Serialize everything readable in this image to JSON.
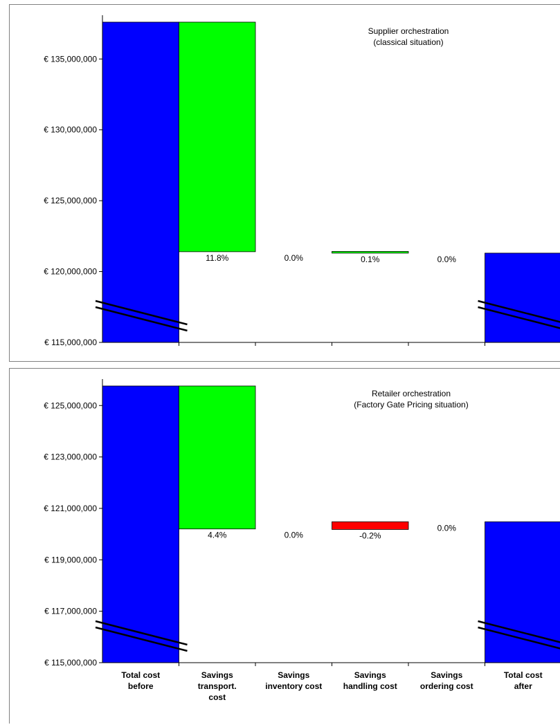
{
  "chart_data": [
    {
      "type": "bar",
      "title": [
        "Supplier orchestration",
        "(classical situation)"
      ],
      "categories": [
        "Total cost before",
        "Savings transport. cost",
        "Savings inventory cost",
        "Savings handling cost",
        "Savings ordering cost",
        "Total cost after"
      ],
      "ylim": [
        115000000,
        137600000
      ],
      "yticks": [
        115000000,
        120000000,
        125000000,
        130000000,
        135000000
      ],
      "ytick_labels": [
        "€ 115,000,000",
        "€ 120,000,000",
        "€ 125,000,000",
        "€ 130,000,000",
        "€ 135,000,000"
      ],
      "bars": [
        {
          "category": "Total cost before",
          "bottom": 115000000,
          "top": 137600000,
          "color": "#0000FF",
          "label": "",
          "axis_break": true
        },
        {
          "category": "Savings transport. cost",
          "bottom": 121400000,
          "top": 137600000,
          "color": "#00FF00",
          "label": "11.8%"
        },
        {
          "category": "Savings inventory cost",
          "bottom": 121400000,
          "top": 121400000,
          "color": "#00FF00",
          "label": "0.0%"
        },
        {
          "category": "Savings handling cost",
          "bottom": 121300000,
          "top": 121420000,
          "color": "#00FF00",
          "label": "0.1%"
        },
        {
          "category": "Savings ordering cost",
          "bottom": 121300000,
          "top": 121300000,
          "color": "#00FF00",
          "label": "0.0%"
        },
        {
          "category": "Total cost after",
          "bottom": 115000000,
          "top": 121300000,
          "color": "#0000FF",
          "label": "",
          "axis_break": true
        }
      ],
      "grid": false
    },
    {
      "type": "bar",
      "title": [
        "Retailer orchestration",
        "(Factory Gate Pricing situation)"
      ],
      "categories": [
        "Total cost before",
        "Savings transport. cost",
        "Savings inventory cost",
        "Savings handling cost",
        "Savings ordering cost",
        "Total cost after"
      ],
      "xlabels": [
        [
          "Total cost",
          "before"
        ],
        [
          "Savings",
          "transport.",
          "cost"
        ],
        [
          "Savings",
          "inventory cost"
        ],
        [
          "Savings",
          "handling cost"
        ],
        [
          "Savings",
          "ordering cost"
        ],
        [
          "Total cost",
          "after"
        ]
      ],
      "ylim": [
        115000000,
        125760000
      ],
      "yticks": [
        115000000,
        117000000,
        119000000,
        121000000,
        123000000,
        125000000
      ],
      "ytick_labels": [
        "€ 115,000,000",
        "€ 117,000,000",
        "€ 119,000,000",
        "€ 121,000,000",
        "€ 123,000,000",
        "€ 125,000,000"
      ],
      "bars": [
        {
          "category": "Total cost before",
          "bottom": 115000000,
          "top": 125760000,
          "color": "#0000FF",
          "label": "",
          "axis_break": true
        },
        {
          "category": "Savings transport. cost",
          "bottom": 120200000,
          "top": 125760000,
          "color": "#00FF00",
          "label": "4.4%"
        },
        {
          "category": "Savings inventory cost",
          "bottom": 120200000,
          "top": 120200000,
          "color": "#00FF00",
          "label": "0.0%"
        },
        {
          "category": "Savings handling cost",
          "bottom": 120180000,
          "top": 120480000,
          "color": "#FF0000",
          "label": "-0.2%"
        },
        {
          "category": "Savings ordering cost",
          "bottom": 120480000,
          "top": 120480000,
          "color": "#00FF00",
          "label": "0.0%"
        },
        {
          "category": "Total cost after",
          "bottom": 115000000,
          "top": 120480000,
          "color": "#0000FF",
          "label": "",
          "axis_break": true
        }
      ],
      "grid": false
    }
  ]
}
